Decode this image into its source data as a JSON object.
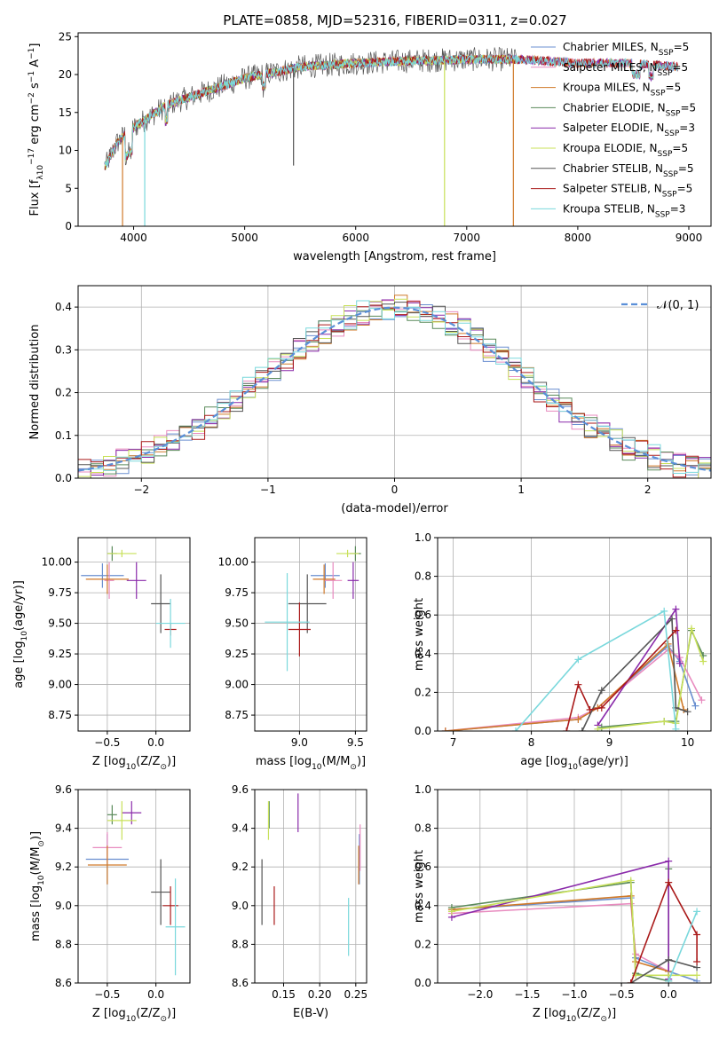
{
  "figure_title": "PLATE=0858, MJD=52316, FIBERID=0311, z=0.027",
  "series_styles": [
    {
      "name": "Chabrier MILES, N_SSP=5",
      "color": "#6a8fd0"
    },
    {
      "name": "Salpeter MILES, N_SSP=5",
      "color": "#e88bbf"
    },
    {
      "name": "Kroupa MILES, N_SSP=5",
      "color": "#d07a2a"
    },
    {
      "name": "Chabrier ELODIE, N_SSP=5",
      "color": "#5a8a5a"
    },
    {
      "name": "Salpeter ELODIE, N_SSP=3",
      "color": "#8a2aaa"
    },
    {
      "name": "Kroupa ELODIE, N_SSP=5",
      "color": "#c8e05a"
    },
    {
      "name": "Chabrier STELIB, N_SSP=5",
      "color": "#555555"
    },
    {
      "name": "Salpeter STELIB, N_SSP=5",
      "color": "#aa1a1a"
    },
    {
      "name": "Kroupa STELIB, N_SSP=3",
      "color": "#7ad8dc"
    }
  ],
  "chart_data": [
    {
      "id": "spectrum",
      "type": "line",
      "title": "PLATE=0858, MJD=52316, FIBERID=0311, z=0.027",
      "xlabel": "wavelength [Angstrom, rest frame]",
      "ylabel_parts": [
        "Flux [f",
        "λ",
        "10",
        "−17",
        " erg cm",
        "−2",
        " s",
        "−1",
        " A",
        "−1",
        "]"
      ],
      "xlim": [
        3500,
        9200
      ],
      "ylim": [
        0,
        25.5
      ],
      "xticks": [
        4000,
        5000,
        6000,
        7000,
        8000,
        9000
      ],
      "yticks": [
        0,
        5,
        10,
        15,
        20,
        25
      ],
      "grid": false,
      "legend_position": "right",
      "legend": [
        {
          "label": "Chabrier MILES, N",
          "sub": "SSP",
          "tail": "=5",
          "color": "#6a8fd0"
        },
        {
          "label": "Salpeter MILES, N",
          "sub": "SSP",
          "tail": "=5",
          "color": "#e88bbf"
        },
        {
          "label": "Kroupa MILES, N",
          "sub": "SSP",
          "tail": "=5",
          "color": "#d07a2a"
        },
        {
          "label": "Chabrier ELODIE, N",
          "sub": "SSP",
          "tail": "=5",
          "color": "#5a8a5a"
        },
        {
          "label": "Salpeter ELODIE, N",
          "sub": "SSP",
          "tail": "=3",
          "color": "#8a2aaa"
        },
        {
          "label": "Kroupa ELODIE, N",
          "sub": "SSP",
          "tail": "=5",
          "color": "#c8e05a"
        },
        {
          "label": "Chabrier STELIB, N",
          "sub": "SSP",
          "tail": "=5",
          "color": "#555555"
        },
        {
          "label": "Salpeter STELIB, N",
          "sub": "SSP",
          "tail": "=5",
          "color": "#aa1a1a"
        },
        {
          "label": "Kroupa STELIB, N",
          "sub": "SSP",
          "tail": "=3",
          "color": "#7ad8dc"
        }
      ],
      "continuum_approx": [
        [
          3750,
          8
        ],
        [
          3850,
          11
        ],
        [
          3950,
          12.5
        ],
        [
          4100,
          14
        ],
        [
          4300,
          16
        ],
        [
          4500,
          17
        ],
        [
          4800,
          18.5
        ],
        [
          5000,
          19.5
        ],
        [
          5500,
          21
        ],
        [
          6000,
          21.5
        ],
        [
          6500,
          21.8
        ],
        [
          7000,
          22
        ],
        [
          7500,
          22
        ],
        [
          8000,
          21.5
        ],
        [
          8500,
          21.5
        ],
        [
          8900,
          21
        ]
      ],
      "features": [
        {
          "x": 3900,
          "y": 0,
          "series": "Kroupa MILES"
        },
        {
          "x": 4100,
          "y": 0,
          "series": "Kroupa STELIB"
        },
        {
          "x": 5440,
          "y": 8,
          "series": "Chabrier STELIB"
        },
        {
          "x": 6800,
          "y": 0,
          "series": "Kroupa ELODIE"
        },
        {
          "x": 7420,
          "y": 0,
          "series": "Kroupa MILES"
        }
      ]
    },
    {
      "id": "residuals",
      "type": "histogram",
      "xlabel": "(data-model)/error",
      "ylabel": "Normed distribution",
      "xlim": [
        -2.5,
        2.5
      ],
      "ylim": [
        0,
        0.45
      ],
      "xticks": [
        -2,
        -1,
        0,
        1,
        2
      ],
      "yticks": [
        0.0,
        0.1,
        0.2,
        0.3,
        0.4
      ],
      "grid": true,
      "legend_position": "top-right",
      "legend": [
        {
          "label": "𝒩(0, 1)",
          "color": "#5a8fd8",
          "style": "dashed"
        }
      ],
      "reference_curve": "normal(0,1)",
      "bin_width": 0.1
    },
    {
      "id": "age-vs-Z",
      "type": "errorbar",
      "xlabel_parts": [
        "Z [log",
        "10",
        "(Z/Z",
        "⊙",
        ")]"
      ],
      "ylabel_parts": [
        "age  [log",
        "10",
        "(age/yr)]"
      ],
      "xlim": [
        -0.8,
        0.35
      ],
      "ylim": [
        8.62,
        10.2
      ],
      "xticks": [
        -0.5,
        0.0
      ],
      "yticks": [
        8.75,
        9.0,
        9.25,
        9.5,
        9.75,
        10.0
      ],
      "grid": true,
      "points": [
        {
          "x": -0.55,
          "y": 9.89,
          "xerr": 0.22,
          "yerr": 0.1,
          "color": "#6a8fd0"
        },
        {
          "x": -0.48,
          "y": 9.85,
          "xerr": 0.05,
          "yerr": 0.15,
          "color": "#e88bbf"
        },
        {
          "x": -0.5,
          "y": 9.86,
          "xerr": 0.22,
          "yerr": 0.12,
          "color": "#d07a2a"
        },
        {
          "x": -0.45,
          "y": 10.07,
          "xerr": 0.05,
          "yerr": 0.06,
          "color": "#5a8a5a"
        },
        {
          "x": -0.2,
          "y": 9.85,
          "xerr": 0.1,
          "yerr": 0.15,
          "color": "#8a2aaa"
        },
        {
          "x": -0.35,
          "y": 10.07,
          "xerr": 0.15,
          "yerr": 0.03,
          "color": "#c8e05a"
        },
        {
          "x": 0.05,
          "y": 9.66,
          "xerr": 0.1,
          "yerr": 0.24,
          "color": "#555555"
        },
        {
          "x": 0.15,
          "y": 9.45,
          "xerr": 0.06,
          "yerr": 0.05,
          "color": "#aa1a1a"
        },
        {
          "x": 0.15,
          "y": 9.5,
          "xerr": 0.15,
          "yerr": 0.2,
          "color": "#7ad8dc"
        }
      ]
    },
    {
      "id": "age-vs-mass",
      "type": "errorbar",
      "xlabel_parts": [
        "mass [log",
        "10",
        "(M/M",
        "⊙",
        ")]"
      ],
      "ylabel_parts": [],
      "xlim": [
        8.6,
        9.6
      ],
      "ylim": [
        8.62,
        10.2
      ],
      "xticks": [
        9.0,
        9.5
      ],
      "yticks": [
        8.75,
        9.0,
        9.25,
        9.5,
        9.75,
        10.0
      ],
      "grid": true,
      "points": [
        {
          "x": 9.23,
          "y": 9.89,
          "xerr": 0.13,
          "yerr": 0.1,
          "color": "#6a8fd0"
        },
        {
          "x": 9.3,
          "y": 9.85,
          "xerr": 0.08,
          "yerr": 0.15,
          "color": "#e88bbf"
        },
        {
          "x": 9.22,
          "y": 9.86,
          "xerr": 0.1,
          "yerr": 0.12,
          "color": "#d07a2a"
        },
        {
          "x": 9.5,
          "y": 10.07,
          "xerr": 0.05,
          "yerr": 0.06,
          "color": "#5a8a5a"
        },
        {
          "x": 9.48,
          "y": 9.85,
          "xerr": 0.05,
          "yerr": 0.15,
          "color": "#8a2aaa"
        },
        {
          "x": 9.43,
          "y": 10.07,
          "xerr": 0.1,
          "yerr": 0.03,
          "color": "#c8e05a"
        },
        {
          "x": 9.07,
          "y": 9.66,
          "xerr": 0.17,
          "yerr": 0.24,
          "color": "#555555"
        },
        {
          "x": 9.0,
          "y": 9.45,
          "xerr": 0.1,
          "yerr": 0.22,
          "color": "#aa1a1a"
        },
        {
          "x": 8.89,
          "y": 9.51,
          "xerr": 0.2,
          "yerr": 0.4,
          "color": "#7ad8dc"
        }
      ]
    },
    {
      "id": "mass-weight-vs-age",
      "type": "line",
      "xlabel_parts": [
        "age  [log",
        "10",
        "(age/yr)]"
      ],
      "ylabel": "mass weight",
      "xlim": [
        6.8,
        10.3
      ],
      "ylim": [
        0,
        1.0
      ],
      "xticks": [
        7,
        8,
        9,
        10
      ],
      "yticks": [
        0.0,
        0.2,
        0.4,
        0.6,
        0.8,
        1.0
      ],
      "grid": true,
      "series": [
        {
          "color": "#6a8fd0",
          "x": [
            6.9,
            8.6,
            8.85,
            9.75,
            9.9,
            10.1
          ],
          "y": [
            0.0,
            0.06,
            0.12,
            0.44,
            0.36,
            0.13
          ]
        },
        {
          "color": "#e88bbf",
          "x": [
            6.9,
            8.6,
            8.85,
            9.75,
            9.9,
            10.18
          ],
          "y": [
            0.0,
            0.07,
            0.12,
            0.42,
            0.38,
            0.16
          ]
        },
        {
          "color": "#d07a2a",
          "x": [
            6.9,
            8.6,
            8.85,
            9.75,
            9.95
          ],
          "y": [
            0.0,
            0.06,
            0.12,
            0.45,
            0.11
          ]
        },
        {
          "color": "#5a8a5a",
          "x": [
            8.9,
            9.7,
            9.85,
            10.05,
            10.2
          ],
          "y": [
            0.02,
            0.05,
            0.05,
            0.52,
            0.39
          ]
        },
        {
          "color": "#8a2aaa",
          "x": [
            8.85,
            9.85,
            9.9
          ],
          "y": [
            0.03,
            0.63,
            0.35
          ]
        },
        {
          "color": "#c8e05a",
          "x": [
            8.85,
            9.7,
            9.85,
            10.05,
            10.2
          ],
          "y": [
            0.01,
            0.05,
            0.04,
            0.53,
            0.36
          ]
        },
        {
          "color": "#555555",
          "x": [
            8.65,
            8.9,
            9.8,
            9.85,
            10.0
          ],
          "y": [
            0.0,
            0.21,
            0.58,
            0.12,
            0.1
          ]
        },
        {
          "color": "#aa1a1a",
          "x": [
            8.45,
            8.6,
            8.75,
            8.9,
            9.85
          ],
          "y": [
            0.0,
            0.24,
            0.11,
            0.12,
            0.52
          ]
        },
        {
          "color": "#7ad8dc",
          "x": [
            7.8,
            8.6,
            9.7,
            9.85
          ],
          "y": [
            0.0,
            0.37,
            0.62,
            0.01
          ]
        }
      ]
    },
    {
      "id": "mass-vs-Z",
      "type": "errorbar",
      "xlabel_parts": [
        "Z [log",
        "10",
        "(Z/Z",
        "⊙",
        ")]"
      ],
      "ylabel_parts": [
        "mass [log",
        "10",
        "(M/M",
        "⊙",
        ")]"
      ],
      "xlim": [
        -0.8,
        0.35
      ],
      "ylim": [
        8.6,
        9.6
      ],
      "xticks": [
        -0.5,
        0.0
      ],
      "yticks": [
        8.6,
        8.8,
        9.0,
        9.2,
        9.4,
        9.6
      ],
      "grid": true,
      "points": [
        {
          "x": -0.5,
          "y": 9.24,
          "xerr": 0.22,
          "yerr": 0.13,
          "color": "#6a8fd0"
        },
        {
          "x": -0.5,
          "y": 9.3,
          "xerr": 0.15,
          "yerr": 0.08,
          "color": "#e88bbf"
        },
        {
          "x": -0.5,
          "y": 9.21,
          "xerr": 0.2,
          "yerr": 0.1,
          "color": "#d07a2a"
        },
        {
          "x": -0.45,
          "y": 9.47,
          "xerr": 0.05,
          "yerr": 0.05,
          "color": "#5a8a5a"
        },
        {
          "x": -0.25,
          "y": 9.48,
          "xerr": 0.1,
          "yerr": 0.06,
          "color": "#8a2aaa"
        },
        {
          "x": -0.35,
          "y": 9.44,
          "xerr": 0.15,
          "yerr": 0.1,
          "color": "#c8e05a"
        },
        {
          "x": 0.05,
          "y": 9.07,
          "xerr": 0.1,
          "yerr": 0.17,
          "color": "#555555"
        },
        {
          "x": 0.15,
          "y": 9.0,
          "xerr": 0.08,
          "yerr": 0.1,
          "color": "#aa1a1a"
        },
        {
          "x": 0.2,
          "y": 8.89,
          "xerr": 0.1,
          "yerr": 0.25,
          "color": "#7ad8dc"
        }
      ]
    },
    {
      "id": "mass-vs-EBV",
      "type": "errorbar",
      "xlabel": "E(B-V)",
      "ylabel_parts": [],
      "xlim": [
        0.11,
        0.265
      ],
      "ylim": [
        8.6,
        9.6
      ],
      "xticks": [
        0.15,
        0.2,
        0.25
      ],
      "yticks": [
        8.6,
        8.8,
        9.0,
        9.2,
        9.4,
        9.6
      ],
      "grid": true,
      "points": [
        {
          "x": 0.255,
          "y": 9.24,
          "xerr": 0,
          "yerr": 0.13,
          "color": "#6a8fd0"
        },
        {
          "x": 0.256,
          "y": 9.3,
          "xerr": 0,
          "yerr": 0.12,
          "color": "#e88bbf"
        },
        {
          "x": 0.254,
          "y": 9.21,
          "xerr": 0,
          "yerr": 0.1,
          "color": "#d07a2a"
        },
        {
          "x": 0.13,
          "y": 9.47,
          "xerr": 0,
          "yerr": 0.07,
          "color": "#5a8a5a"
        },
        {
          "x": 0.17,
          "y": 9.48,
          "xerr": 0,
          "yerr": 0.1,
          "color": "#8a2aaa"
        },
        {
          "x": 0.129,
          "y": 9.44,
          "xerr": 0,
          "yerr": 0.1,
          "color": "#c8e05a"
        },
        {
          "x": 0.12,
          "y": 9.07,
          "xerr": 0,
          "yerr": 0.17,
          "color": "#555555"
        },
        {
          "x": 0.137,
          "y": 9.0,
          "xerr": 0,
          "yerr": 0.1,
          "color": "#aa1a1a"
        },
        {
          "x": 0.24,
          "y": 8.89,
          "xerr": 0,
          "yerr": 0.15,
          "color": "#7ad8dc"
        }
      ]
    },
    {
      "id": "mass-weight-vs-Z",
      "type": "line",
      "xlabel_parts": [
        "Z [log",
        "10",
        "(Z/Z",
        "⊙",
        ")]"
      ],
      "ylabel": "mass weight",
      "xlim": [
        -2.45,
        0.45
      ],
      "ylim": [
        0,
        1.0
      ],
      "xticks": [
        -2.0,
        -1.5,
        -1.0,
        -0.5,
        0.0
      ],
      "yticks": [
        0.0,
        0.2,
        0.4,
        0.6,
        0.8,
        1.0
      ],
      "grid": true,
      "series": [
        {
          "color": "#6a8fd0",
          "x": [
            -2.3,
            -0.4,
            -0.35,
            0.0,
            0.3
          ],
          "y": [
            0.38,
            0.44,
            0.13,
            0.06,
            0.01
          ]
        },
        {
          "color": "#e88bbf",
          "x": [
            -2.3,
            -0.4,
            -0.35,
            0.0
          ],
          "y": [
            0.36,
            0.41,
            0.15,
            0.06
          ]
        },
        {
          "color": "#d07a2a",
          "x": [
            -2.3,
            -0.4,
            -0.35,
            0.0
          ],
          "y": [
            0.38,
            0.45,
            0.11,
            0.06
          ]
        },
        {
          "color": "#5a8a5a",
          "x": [
            -2.3,
            -0.4,
            -0.35,
            0.0,
            0.0
          ],
          "y": [
            0.39,
            0.52,
            0.05,
            0.01,
            0.59
          ]
        },
        {
          "color": "#8a2aaa",
          "x": [
            -2.3,
            0.0,
            0.0
          ],
          "y": [
            0.34,
            0.63,
            0.02
          ]
        },
        {
          "color": "#c8e05a",
          "x": [
            -2.3,
            -0.4,
            -0.35,
            0.0,
            0.3
          ],
          "y": [
            0.37,
            0.53,
            0.04,
            0.04,
            0.04
          ]
        },
        {
          "color": "#555555",
          "x": [
            -0.4,
            0.0,
            0.3
          ],
          "y": [
            0.0,
            0.12,
            0.08
          ]
        },
        {
          "color": "#aa1a1a",
          "x": [
            -0.4,
            0.0,
            0.3,
            0.3
          ],
          "y": [
            0.0,
            0.52,
            0.25,
            0.11
          ]
        },
        {
          "color": "#7ad8dc",
          "x": [
            0.0,
            0.3
          ],
          "y": [
            0.01,
            0.37
          ]
        }
      ]
    }
  ]
}
